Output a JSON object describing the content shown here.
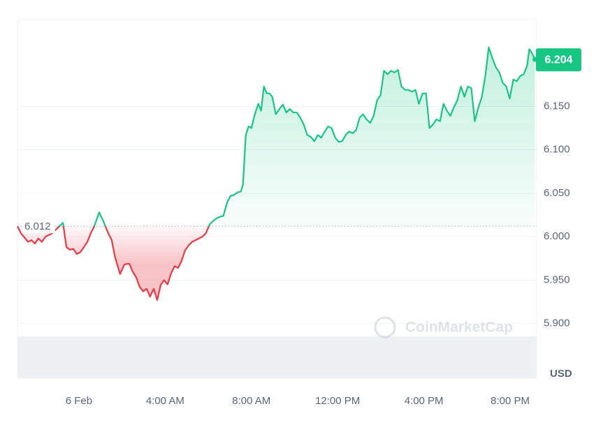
{
  "chart_data": {
    "type": "line",
    "series": [
      {
        "color": "#16c784",
        "below_color": "#ea3943",
        "x": [
          -2.85,
          -2.69,
          -2.36,
          -2.2,
          -2.04,
          -1.88,
          -1.72,
          -1.55,
          -1.23,
          -0.91,
          -0.74,
          -0.58,
          -0.42,
          -0.26,
          -0.1,
          0.06,
          0.23,
          0.39,
          0.55,
          0.71,
          0.94,
          1.13,
          1.36,
          1.52,
          1.68,
          1.91,
          2.11,
          2.33,
          2.49,
          2.66,
          2.82,
          2.98,
          3.14,
          3.3,
          3.47,
          3.63,
          3.79,
          3.95,
          4.11,
          4.28,
          4.44,
          4.6,
          4.76,
          4.92,
          5.09,
          5.25,
          5.41,
          5.57,
          5.73,
          5.89,
          6.06,
          6.22,
          6.38,
          6.54,
          6.7,
          6.87,
          7.03,
          7.19,
          7.35,
          7.51,
          7.61,
          7.74,
          7.87,
          8.0,
          8.16,
          8.32,
          8.45,
          8.58,
          8.71,
          8.84,
          8.97,
          9.13,
          9.3,
          9.46,
          9.62,
          9.78,
          9.94,
          10.11,
          10.27,
          10.43,
          10.59,
          10.75,
          10.92,
          11.08,
          11.24,
          11.4,
          11.56,
          11.72,
          11.89,
          12.05,
          12.21,
          12.37,
          12.53,
          12.7,
          12.86,
          13.02,
          13.18,
          13.34,
          13.51,
          13.67,
          13.83,
          13.99,
          14.15,
          14.32,
          14.48,
          14.64,
          14.8,
          14.96,
          15.13,
          15.29,
          15.45,
          15.61,
          15.77,
          15.94,
          16.1,
          16.26,
          16.42,
          16.58,
          16.75,
          16.91,
          17.07,
          17.23,
          17.39,
          17.55,
          17.72,
          17.88,
          18.04,
          18.2,
          18.36,
          18.53,
          18.69,
          18.85,
          19.01,
          19.17,
          19.34,
          19.5,
          19.66,
          19.82,
          19.98,
          20.15,
          20.31,
          20.47,
          20.63,
          20.79,
          20.89,
          21.02,
          21.15
        ],
        "values": [
          6.012,
          6.004,
          5.994,
          5.996,
          5.992,
          5.998,
          5.994,
          6.0,
          6.004,
          6.012,
          6.016,
          5.988,
          5.985,
          5.986,
          5.98,
          5.982,
          5.988,
          5.994,
          6.004,
          6.012,
          6.028,
          6.018,
          6.004,
          5.996,
          5.976,
          5.957,
          5.968,
          5.969,
          5.96,
          5.953,
          5.942,
          5.937,
          5.94,
          5.931,
          5.94,
          5.927,
          5.944,
          5.95,
          5.945,
          5.958,
          5.966,
          5.964,
          5.972,
          5.984,
          5.99,
          5.994,
          5.996,
          5.998,
          6.0,
          6.004,
          6.014,
          6.018,
          6.021,
          6.023,
          6.024,
          6.039,
          6.047,
          6.048,
          6.051,
          6.052,
          6.06,
          6.117,
          6.127,
          6.125,
          6.141,
          6.153,
          6.145,
          6.173,
          6.165,
          6.165,
          6.161,
          6.141,
          6.147,
          6.152,
          6.143,
          6.147,
          6.143,
          6.143,
          6.137,
          6.129,
          6.117,
          6.115,
          6.11,
          6.117,
          6.114,
          6.121,
          6.127,
          6.125,
          6.114,
          6.109,
          6.11,
          6.117,
          6.121,
          6.119,
          6.123,
          6.137,
          6.141,
          6.135,
          6.131,
          6.139,
          6.157,
          6.163,
          6.191,
          6.187,
          6.191,
          6.189,
          6.192,
          6.173,
          6.169,
          6.169,
          6.167,
          6.169,
          6.153,
          6.165,
          6.165,
          6.125,
          6.129,
          6.135,
          6.133,
          6.153,
          6.145,
          6.139,
          6.149,
          6.157,
          6.173,
          6.161,
          6.173,
          6.171,
          6.133,
          6.149,
          6.161,
          6.185,
          6.218,
          6.206,
          6.195,
          6.189,
          6.177,
          6.173,
          6.159,
          6.181,
          6.179,
          6.185,
          6.187,
          6.197,
          6.216,
          6.211,
          6.204
        ]
      }
    ],
    "baseline": 6.012,
    "current_price": 6.204,
    "xlim": [
      -2.85,
      21.23
    ],
    "xticks": [
      {
        "value": 0,
        "label": "6 Feb"
      },
      {
        "value": 4,
        "label": "4:00 AM"
      },
      {
        "value": 8,
        "label": "8:00 AM"
      },
      {
        "value": 12,
        "label": "12:00 PM"
      },
      {
        "value": 16,
        "label": "4:00 PM"
      },
      {
        "value": 20,
        "label": "8:00 PM"
      }
    ],
    "ylim": [
      5.837,
      6.25
    ],
    "yticks": [
      {
        "value": 5.9,
        "label": "5.900"
      },
      {
        "value": 5.95,
        "label": "5.950"
      },
      {
        "value": 6.0,
        "label": "6.000"
      },
      {
        "value": 6.05,
        "label": "6.050"
      },
      {
        "value": 6.1,
        "label": "6.100"
      },
      {
        "value": 6.15,
        "label": "6.150"
      }
    ],
    "y_label": "USD",
    "watermark": "CoinMarketCap",
    "grid": true
  }
}
